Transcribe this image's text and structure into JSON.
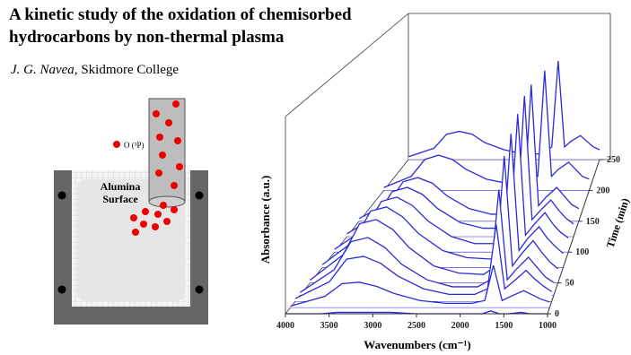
{
  "header": {
    "title_lines": [
      "A kinetic study of the oxidation of chemisorbed",
      "hydrocarbons by non-thermal plasma"
    ],
    "author_name": "J. G. Navea",
    "affiliation": ", Skidmore College"
  },
  "diagram": {
    "species_label": "O (³P)",
    "surface_label_lines": [
      "Alumina",
      "Surface"
    ]
  },
  "chart_data": {
    "type": "waterfall",
    "x_label": "Wavenumbers (cm⁻¹)",
    "y_label": "Time (min)",
    "z_label": "Absorbance (a.u.)",
    "color": "#2a2ad8",
    "xlim": [
      4000,
      1000
    ],
    "xticks": [
      4000,
      3500,
      3000,
      2500,
      2000,
      1500,
      1000
    ],
    "ylim": [
      0,
      250
    ],
    "yticks": [
      0,
      50,
      100,
      150,
      200,
      250
    ],
    "zlim": [
      0,
      1.4
    ],
    "x": [
      4000,
      3600,
      3400,
      3200,
      3000,
      2800,
      2500,
      2200,
      1900,
      1750,
      1650,
      1550,
      1450,
      1300,
      1200,
      1100,
      1000
    ],
    "times": [
      0,
      10,
      20,
      30,
      50,
      75,
      100,
      125,
      150,
      200,
      250
    ],
    "spectra": [
      [
        0,
        0,
        0.01,
        0.01,
        0.01,
        0.01,
        0,
        0,
        0,
        0,
        0.02,
        0,
        0,
        0.01,
        0,
        0,
        0
      ],
      [
        0.01,
        0.08,
        0.17,
        0.18,
        0.15,
        0.1,
        0.05,
        0.03,
        0.03,
        0.05,
        0.3,
        0.05,
        0.08,
        0.12,
        0.09,
        0.06,
        0.04
      ],
      [
        0.02,
        0.14,
        0.3,
        0.32,
        0.27,
        0.18,
        0.09,
        0.05,
        0.05,
        0.09,
        0.55,
        0.09,
        0.14,
        0.22,
        0.16,
        0.11,
        0.07
      ],
      [
        0.02,
        0.18,
        0.38,
        0.41,
        0.34,
        0.22,
        0.11,
        0.06,
        0.06,
        0.11,
        0.75,
        0.11,
        0.18,
        0.27,
        0.2,
        0.13,
        0.09
      ],
      [
        0.02,
        0.2,
        0.42,
        0.45,
        0.38,
        0.25,
        0.12,
        0.07,
        0.06,
        0.12,
        0.9,
        0.12,
        0.2,
        0.3,
        0.22,
        0.15,
        0.1
      ],
      [
        0.02,
        0.19,
        0.4,
        0.43,
        0.36,
        0.24,
        0.12,
        0.07,
        0.06,
        0.12,
        0.95,
        0.12,
        0.2,
        0.29,
        0.21,
        0.15,
        0.1
      ],
      [
        0.02,
        0.17,
        0.36,
        0.39,
        0.33,
        0.22,
        0.11,
        0.06,
        0.06,
        0.12,
        0.98,
        0.12,
        0.19,
        0.28,
        0.2,
        0.14,
        0.1
      ],
      [
        0.02,
        0.15,
        0.32,
        0.35,
        0.3,
        0.2,
        0.1,
        0.06,
        0.06,
        0.12,
        1.0,
        0.12,
        0.18,
        0.26,
        0.19,
        0.13,
        0.09
      ],
      [
        0.02,
        0.13,
        0.28,
        0.31,
        0.27,
        0.18,
        0.09,
        0.05,
        0.05,
        0.11,
        0.97,
        0.11,
        0.17,
        0.24,
        0.18,
        0.12,
        0.09
      ],
      [
        0.02,
        0.1,
        0.22,
        0.25,
        0.22,
        0.15,
        0.08,
        0.05,
        0.05,
        0.1,
        0.85,
        0.1,
        0.15,
        0.2,
        0.15,
        0.1,
        0.08
      ],
      [
        0.02,
        0.08,
        0.18,
        0.2,
        0.18,
        0.12,
        0.07,
        0.04,
        0.04,
        0.09,
        0.7,
        0.09,
        0.13,
        0.17,
        0.13,
        0.09,
        0.07
      ]
    ]
  }
}
